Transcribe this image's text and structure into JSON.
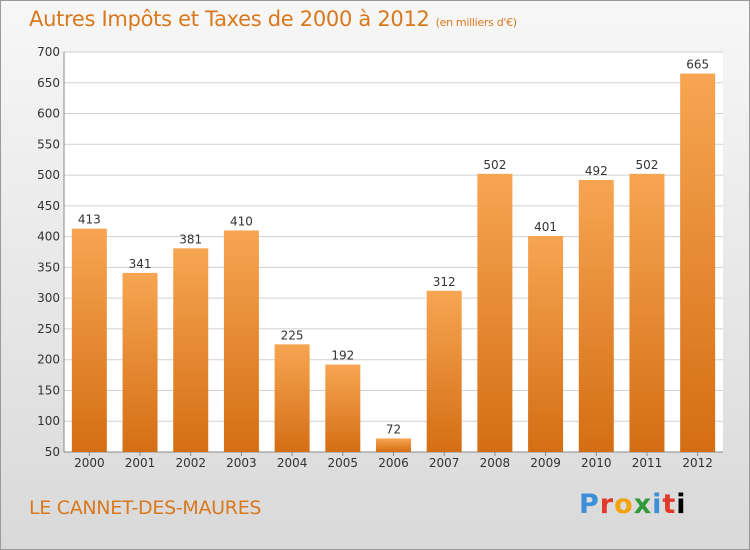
{
  "chart_data": {
    "type": "bar",
    "title": "Autres Impôts et Taxes de 2000 à 2012",
    "unit": "(en milliers d'€)",
    "categories": [
      "2000",
      "2001",
      "2002",
      "2003",
      "2004",
      "2005",
      "2006",
      "2007",
      "2008",
      "2009",
      "2010",
      "2011",
      "2012"
    ],
    "values": [
      413,
      341,
      381,
      410,
      225,
      192,
      72,
      312,
      502,
      401,
      492,
      502,
      665
    ],
    "ylim": [
      50,
      700
    ],
    "yticks": [
      50,
      100,
      150,
      200,
      250,
      300,
      350,
      400,
      450,
      500,
      550,
      600,
      650,
      700
    ],
    "grid": true,
    "bar_color": "#ee8a30"
  },
  "place": "LE CANNET-DES-MAURES",
  "logo": "Proxiti",
  "colors": {
    "accent": "#d9781c"
  }
}
